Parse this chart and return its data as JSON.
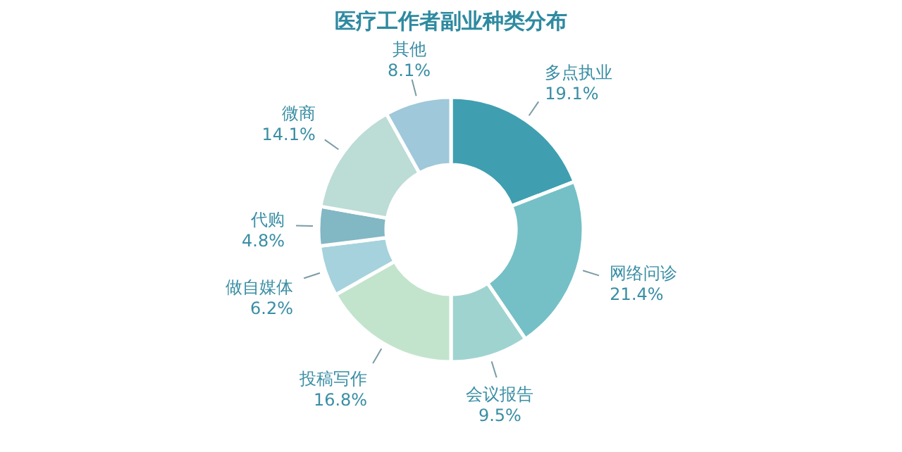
{
  "chart_data": {
    "type": "donut",
    "title": "医疗工作者副业种类分布",
    "categories": [
      "多点执业",
      "网络问诊",
      "会议报告",
      "投稿写作",
      "做自媒体",
      "代购",
      "微商",
      "其他"
    ],
    "values": [
      19.1,
      21.4,
      9.5,
      16.8,
      6.2,
      4.8,
      14.1,
      8.1
    ],
    "value_labels": [
      "19.1%",
      "21.4%",
      "9.5%",
      "16.8%",
      "6.2%",
      "4.8%",
      "14.1%",
      "8.1%"
    ],
    "colors": [
      "#3f9fb0",
      "#74c0c6",
      "#9fd3cf",
      "#c3e4cc",
      "#a5d2dd",
      "#82b7c4",
      "#bcdcd6",
      "#9fc8da"
    ]
  }
}
